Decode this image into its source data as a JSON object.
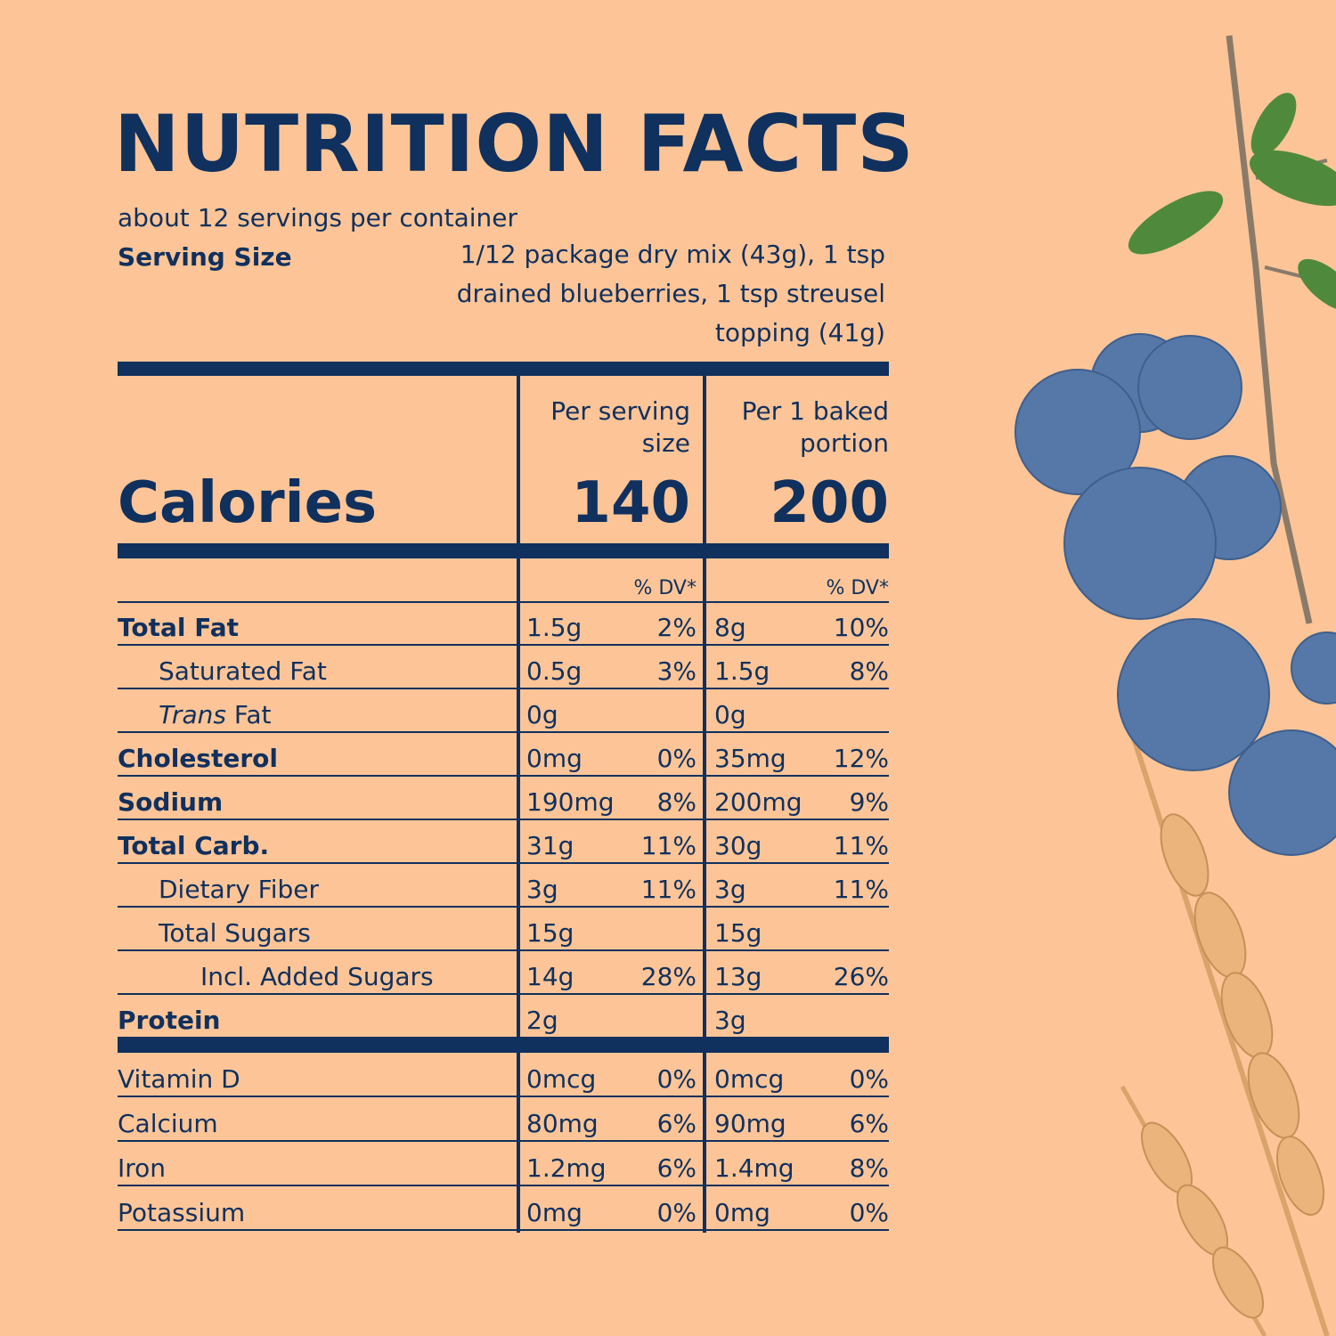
{
  "label": {
    "title": "NUTRITION  FACTS",
    "servings_per_container": "about 12 servings per container",
    "serving_size_label": "Serving Size",
    "serving_size_value": "1/12 package dry mix (43g), 1 tsp drained blueberries, 1 tsp streusel topping (41g)",
    "calories_label": "Calories",
    "col1_header": "Per serving size",
    "col2_header": "Per 1 baked portion",
    "col1_calories": "140",
    "col2_calories": "200",
    "dv_header": "% DV*",
    "nutrients": [
      {
        "name": "Total Fat",
        "bold": true,
        "indent": 0,
        "v1": "1.5g",
        "p1": "2%",
        "v2": "8g",
        "p2": "10%"
      },
      {
        "name": "Saturated Fat",
        "bold": false,
        "indent": 1,
        "v1": "0.5g",
        "p1": "3%",
        "v2": "1.5g",
        "p2": "8%"
      },
      {
        "name_italic": "Trans",
        "name": " Fat",
        "bold": false,
        "indent": 1,
        "v1": "0g",
        "p1": "",
        "v2": "0g",
        "p2": ""
      },
      {
        "name": "Cholesterol",
        "bold": true,
        "indent": 0,
        "v1": "0mg",
        "p1": "0%",
        "v2": "35mg",
        "p2": "12%"
      },
      {
        "name": "Sodium",
        "bold": true,
        "indent": 0,
        "v1": "190mg",
        "p1": "8%",
        "v2": "200mg",
        "p2": "9%"
      },
      {
        "name": "Total Carb.",
        "bold": true,
        "indent": 0,
        "v1": "31g",
        "p1": "11%",
        "v2": "30g",
        "p2": "11%"
      },
      {
        "name": "Dietary Fiber",
        "bold": false,
        "indent": 1,
        "v1": "3g",
        "p1": "11%",
        "v2": "3g",
        "p2": "11%"
      },
      {
        "name": "Total Sugars",
        "bold": false,
        "indent": 1,
        "v1": "15g",
        "p1": "",
        "v2": "15g",
        "p2": ""
      },
      {
        "name": "Incl. Added Sugars",
        "bold": false,
        "indent": 2,
        "v1": "14g",
        "p1": "28%",
        "v2": "13g",
        "p2": "26%"
      },
      {
        "name": "Protein",
        "bold": true,
        "indent": 0,
        "v1": "2g",
        "p1": "",
        "v2": "3g",
        "p2": ""
      }
    ],
    "vitamins": [
      {
        "name": "Vitamin D",
        "v1": "0mcg",
        "p1": "0%",
        "v2": "0mcg",
        "p2": "0%"
      },
      {
        "name": "Calcium",
        "v1": "80mg",
        "p1": "6%",
        "v2": "90mg",
        "p2": "6%"
      },
      {
        "name": "Iron",
        "v1": "1.2mg",
        "p1": "6%",
        "v2": "1.4mg",
        "p2": "8%"
      },
      {
        "name": "Potassium",
        "v1": "0mg",
        "p1": "0%",
        "v2": "0mg",
        "p2": "0%"
      }
    ]
  },
  "colors": {
    "background": "#fdc597",
    "ink": "#10305e",
    "blueberry": "#5578a8",
    "leaf": "#4f8a3c",
    "wheat": "#e8b27a"
  },
  "decoration": {
    "icons": [
      "blueberry-branch-illustration",
      "wheat-stalk-illustration"
    ]
  }
}
